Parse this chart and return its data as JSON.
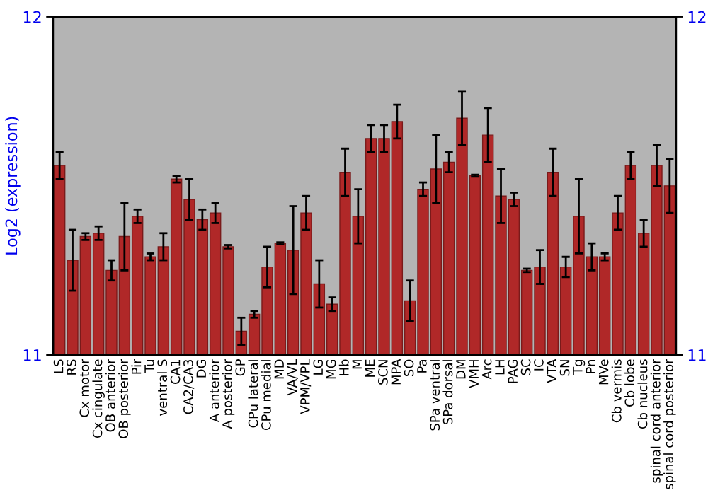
{
  "chart_data": {
    "type": "bar",
    "ylabel": "Log2 (expression)",
    "categories": [
      "LS",
      "RS",
      "Cx motor",
      "Cx cingulate",
      "OB anterior",
      "OB posterior",
      "Pir",
      "Tu",
      "ventral S",
      "CA1",
      "CA2/CA3",
      "DG",
      "A anterior",
      "A posterior",
      "GP",
      "CPu lateral",
      "CPu medial",
      "MD",
      "VA/VL",
      "VPM/VPL",
      "LG",
      "MG",
      "Hb",
      "M",
      "ME",
      "SCN",
      "MPA",
      "SO",
      "Pa",
      "SPa ventral",
      "SPa dorsal",
      "DM",
      "VMH",
      "Arc",
      "LH",
      "PAG",
      "SC",
      "IC",
      "VTA",
      "SN",
      "Tg",
      "Pn",
      "MVe",
      "Cb vermis",
      "Cb lobe",
      "Cb nucleus",
      "spinal cord anterior",
      "spinal cord posterior"
    ],
    "values": [
      11.56,
      11.28,
      11.35,
      11.36,
      11.25,
      11.35,
      11.41,
      11.29,
      11.32,
      11.52,
      11.46,
      11.4,
      11.42,
      11.32,
      11.07,
      11.12,
      11.26,
      11.33,
      11.31,
      11.42,
      11.21,
      11.15,
      11.54,
      11.41,
      11.64,
      11.64,
      11.69,
      11.16,
      11.49,
      11.55,
      11.57,
      11.7,
      11.53,
      11.65,
      11.47,
      11.46,
      11.25,
      11.26,
      11.54,
      11.26,
      11.41,
      11.29,
      11.29,
      11.42,
      11.56,
      11.36,
      11.56,
      11.5
    ],
    "errors": [
      0.04,
      0.09,
      0.01,
      0.02,
      0.03,
      0.1,
      0.02,
      0.01,
      0.04,
      0.01,
      0.06,
      0.03,
      0.03,
      0.005,
      0.04,
      0.01,
      0.06,
      0.003,
      0.13,
      0.05,
      0.07,
      0.02,
      0.07,
      0.08,
      0.04,
      0.04,
      0.05,
      0.06,
      0.02,
      0.1,
      0.03,
      0.08,
      0.003,
      0.08,
      0.08,
      0.02,
      0.005,
      0.05,
      0.07,
      0.03,
      0.11,
      0.04,
      0.01,
      0.05,
      0.04,
      0.04,
      0.06,
      0.08
    ],
    "color": "#b02828",
    "ylim": [
      11,
      12
    ],
    "yticks": [
      11,
      12
    ],
    "y2lim": [
      11,
      12
    ],
    "y2ticks": [
      11,
      12
    ],
    "grid": false,
    "legend": false
  }
}
